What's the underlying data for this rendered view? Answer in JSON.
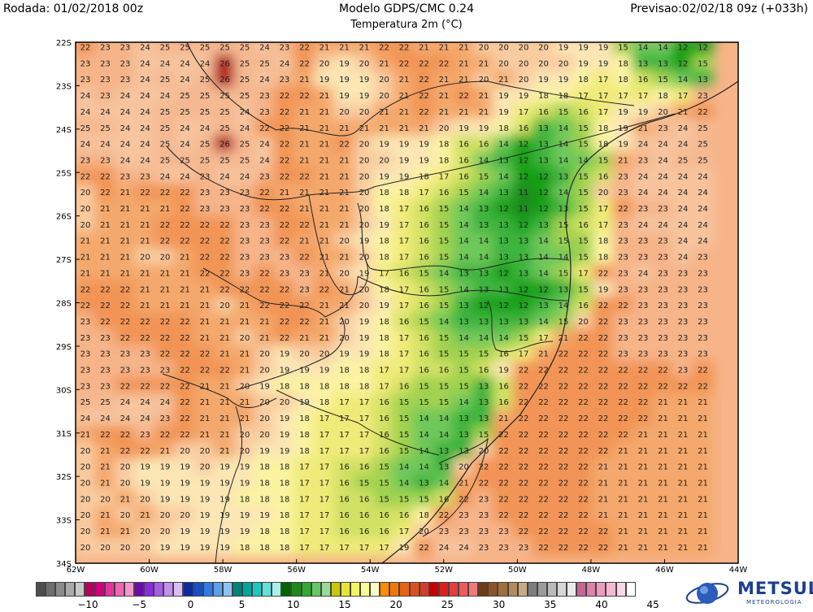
{
  "header": {
    "run": "Rodada: 01/02/2018 00z",
    "model": "Modelo GDPS/CMC 0.24",
    "field": "Temperatura 2m (°C)",
    "forecast": "Previsao:02/02/18 09z (+033h)"
  },
  "map": {
    "lat_labels": [
      "22S",
      "23S",
      "24S",
      "25S",
      "26S",
      "27S",
      "28S",
      "29S",
      "30S",
      "31S",
      "32S",
      "33S",
      "34S"
    ],
    "lon_labels": [
      "62W",
      "60W",
      "58W",
      "56W",
      "54W",
      "52W",
      "50W",
      "48W",
      "46W",
      "44W"
    ],
    "grid_rows": [
      "22 23 23 24 25 25 25 25 25 24 23 22 21 21 21 22 22 21 21 21 20 20 20 20 19 19 19 15 14 14 12 12",
      "23 23 23 24 24 24 24 26 25 25 24 22 20 19 20 21 22 22 22 21 21 20 20 20 20 19 19 18 13 13 12 15",
      "23 23 23 24 25 24 25 26 25 24 23 21 19 19 19 20 21 22 21 21 20 21 20 19 19 18 17 18 16 15 14 13",
      "24 23 24 24 24 25 25 25 25 23 22 22 21 19 19 20 21 22 21 22 21 19 19 18 18 17 17 17 17 18 17 23",
      "24 24 24 24 25 25 25 25 24 23 22 21 21 20 20 21 21 22 21 21 21 19 17 16 15 16 17 19 19 20 21 22",
      "25 25 24 24 25 24 24 25 24 22 22 21 21 21 21 21 21 21 20 19 19 18 16 13 14 15 18 19 21 23 24 25",
      "24 24 24 24 25 24 25 26 25 24 22 21 21 22 20 19 19 19 18 16 16 14 12 13 14 15 18 19 24 24 24 25",
      "23 23 24 24 25 25 25 25 25 24 22 21 21 21 20 20 19 19 18 16 14 13 12 13 14 14 15 21 23 24 25 25",
      "22 22 23 23 24 24 23 24 24 23 22 22 21 21 20 19 19 18 17 16 15 14 12 12 13 15 16 23 24 24 24 24",
      "20 22 21 22 22 22 23 23 23 22 21 21 21 21 20 18 18 17 16 15 14 13 11 12 14 15 20 23 24 24 24 24",
      "20 21 21 21 21 22 23 23 23 22 22 21 21 21 20 18 17 16 15 14 13 12 11 12 13 15 17 22 23 23 24 24",
      "20 21 21 21 22 22 22 22 23 23 22 22 21 21 20 19 17 16 15 14 13 13 12 13 15 16 17 23 24 24 24 24",
      "21 21 21 21 22 22 22 22 23 23 22 21 21 20 19 18 17 16 15 14 14 13 13 14 15 15 18 23 23 23 24 24",
      "21 21 21 20 20 21 22 22 23 23 23 22 21 21 20 18 17 16 15 14 14 13 13 14 14 15 18 23 23 23 24 23",
      "21 21 21 21 21 21 22 22 23 22 23 23 21 20 19 17 16 15 14 13 13 12 13 14 15 17 22 23 24 23 23 23",
      "22 22 22 21 21 21 21 22 22 22 22 23 22 21 20 18 17 16 15 14 13 13 12 12 13 15 19 23 23 23 23 23",
      "22 22 22 21 21 21 21 20 21 22 22 22 21 21 20 19 17 16 15 13 12 12 12 13 14 16 22 22 23 23 23 23",
      "23 22 22 22 22 22 21 21 21 21 22 22 21 20 19 18 16 15 14 13 13 13 13 14 15 20 22 23 23 23 23 23",
      "23 23 22 22 22 22 21 21 20 21 22 21 21 20 19 18 17 16 15 14 14 14 15 17 21 22 22 23 23 23 23 23",
      "23 23 23 23 22 22 22 21 21 20 19 20 20 19 19 18 17 16 15 15 15 16 17 21 22 22 22 23 23 23 23 23",
      "23 23 23 23 23 22 22 22 21 20 19 19 19 18 18 17 17 16 16 15 16 19 22 22 22 22 22 22 22 22 23 22",
      "23 23 22 22 22 22 21 21 20 19 18 18 18 18 18 17 16 15 15 15 13 16 22 22 22 22 22 22 22 22 22 22",
      "25 25 24 24 24 22 21 21 21 20 20 19 18 17 17 16 15 15 15 14 13 16 22 22 22 22 22 22 22 21 21 21",
      "24 24 24 24 23 22 21 21 21 20 19 18 17 17 17 16 15 14 14 13 13 21 22 22 22 22 22 22 22 21 21 21",
      "21 22 22 23 22 22 21 21 20 20 19 18 17 17 17 16 15 14 14 13 15 22 22 22 22 22 22 22 21 21 21 21",
      "20 21 22 22 21 20 20 21 20 19 19 18 17 17 17 16 15 14 13 13 20 22 22 22 22 22 22 21 21 21 21 21",
      "20 21 20 19 19 19 20 19 19 18 18 17 17 16 16 15 14 14 13 20 22 22 22 22 22 22 21 21 21 21 21 21",
      "20 21 20 19 19 19 19 19 19 18 18 17 17 16 15 15 14 13 14 21 22 22 22 22 22 22 21 21 21 21 21 21",
      "20 20 21 20 19 19 19 19 18 18 18 17 17 16 16 15 15 15 16 22 23 22 22 22 22 22 21 21 21 21 21 21",
      "20 21 20 21 20 20 19 19 19 19 18 17 17 16 16 16 16 18 22 23 23 22 22 22 22 22 21 21 21 21 21 21",
      "20 21 21 20 20 19 19 19 19 18 18 17 17 16 16 16 17 20 23 23 23 23 22 22 22 22 22 21 21 21 21 21",
      "20 20 20 20 19 19 19 19 18 18 18 17 17 17 17 17 19 22 24 24 23 23 23 22 22 22 22 21 21 21 21 21"
    ]
  },
  "colorbar": {
    "colors": [
      "#4d4d4d",
      "#6e6e6e",
      "#8c8c8c",
      "#aaaaaa",
      "#c8c8c8",
      "#b4005a",
      "#d2007d",
      "#e6329b",
      "#f064b4",
      "#f596cd",
      "#6a0dad",
      "#8a2be2",
      "#a45ee5",
      "#c08ff0",
      "#d9bdf7",
      "#0a2a9c",
      "#1550c8",
      "#2f7ae6",
      "#5aa0f0",
      "#8cc4f5",
      "#00827a",
      "#00a69c",
      "#1ec8c0",
      "#64e0d8",
      "#a6f0ea",
      "#006400",
      "#1a8a1a",
      "#32aa32",
      "#64c864",
      "#96dc96",
      "#c8c800",
      "#e6e632",
      "#f5f564",
      "#fafa96",
      "#fcfcc8",
      "#ff8c00",
      "#f0780a",
      "#e66414",
      "#dc501e",
      "#d23c28",
      "#c80000",
      "#dc1e1e",
      "#e63c3c",
      "#f05a5a",
      "#f57878",
      "#6e3c14",
      "#8c5528",
      "#a06e3c",
      "#b48c5a",
      "#c8aa82",
      "#7d7d7d",
      "#9b9b9b",
      "#b9b9b9",
      "#d7d7d7",
      "#ebebeb",
      "#c86496",
      "#dc82aa",
      "#eb9bbe",
      "#f5b9d2",
      "#fad7e6",
      "#ffffff"
    ],
    "labels": [
      "−10",
      "−5",
      "0",
      "5",
      "10",
      "15",
      "20",
      "25",
      "30",
      "35",
      "40",
      "45"
    ]
  },
  "logo": {
    "name": "METSUL",
    "tagline": "METEOROLOGIA"
  }
}
